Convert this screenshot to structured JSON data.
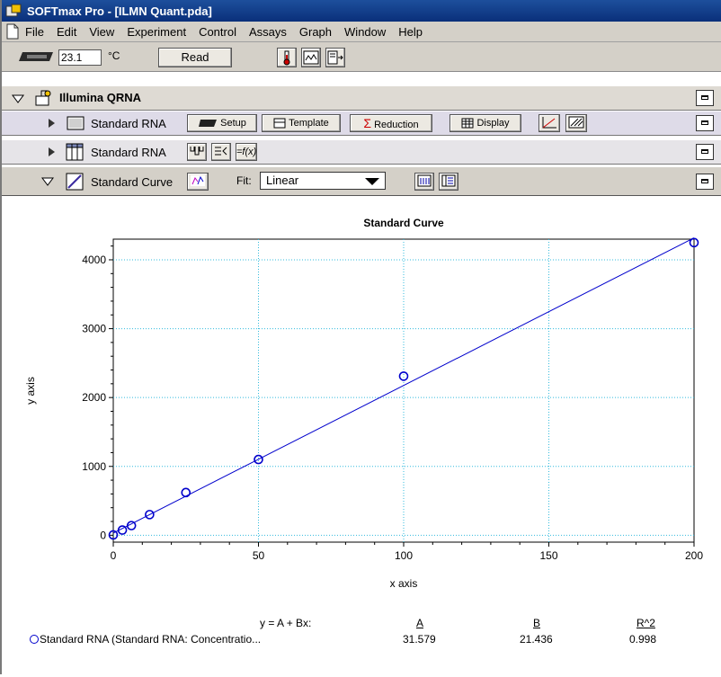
{
  "window": {
    "title": "SOFTmax Pro - [ILMN Quant.pda]"
  },
  "menu": [
    "File",
    "Edit",
    "View",
    "Experiment",
    "Control",
    "Assays",
    "Graph",
    "Window",
    "Help"
  ],
  "toolbar": {
    "temperature": "23.1",
    "temp_unit": "°C",
    "read_label": "Read"
  },
  "experiment": {
    "name": "Illumina QRNA"
  },
  "sections": {
    "plate": {
      "label": "Standard RNA",
      "buttons": [
        "Setup",
        "Template",
        "Reduction",
        "Display"
      ]
    },
    "group": {
      "label": "Standard RNA"
    },
    "graph": {
      "label": "Standard Curve",
      "fit_label": "Fit:",
      "fit_value": "Linear"
    }
  },
  "chart_data": {
    "type": "scatter",
    "title": "Standard Curve",
    "xlabel": "x axis",
    "ylabel": "y axis",
    "xlim": [
      0,
      200
    ],
    "ylim": [
      -100,
      4300
    ],
    "x_ticks": [
      "0",
      "50",
      "100",
      "150",
      "200"
    ],
    "y_ticks": [
      "0",
      "1000",
      "2000",
      "3000",
      "4000"
    ],
    "x_tick_values": [
      0,
      50,
      100,
      150,
      200
    ],
    "y_tick_values": [
      0,
      1000,
      2000,
      3000,
      4000
    ],
    "grid": true,
    "series": [
      {
        "name": "Standard RNA (Standard RNA: Concentratio...",
        "color": "#0000cc",
        "x": [
          0,
          3.125,
          6.25,
          12.5,
          25,
          50,
          100,
          200
        ],
        "y": [
          5,
          75,
          140,
          300,
          620,
          1100,
          2310,
          4250
        ]
      }
    ],
    "fit": {
      "equation": "y = A + Bx:",
      "headers": [
        "A",
        "B",
        "R^2"
      ],
      "values": [
        "31.579",
        "21.436",
        "0.998"
      ],
      "A": 31.579,
      "B": 21.436
    }
  }
}
